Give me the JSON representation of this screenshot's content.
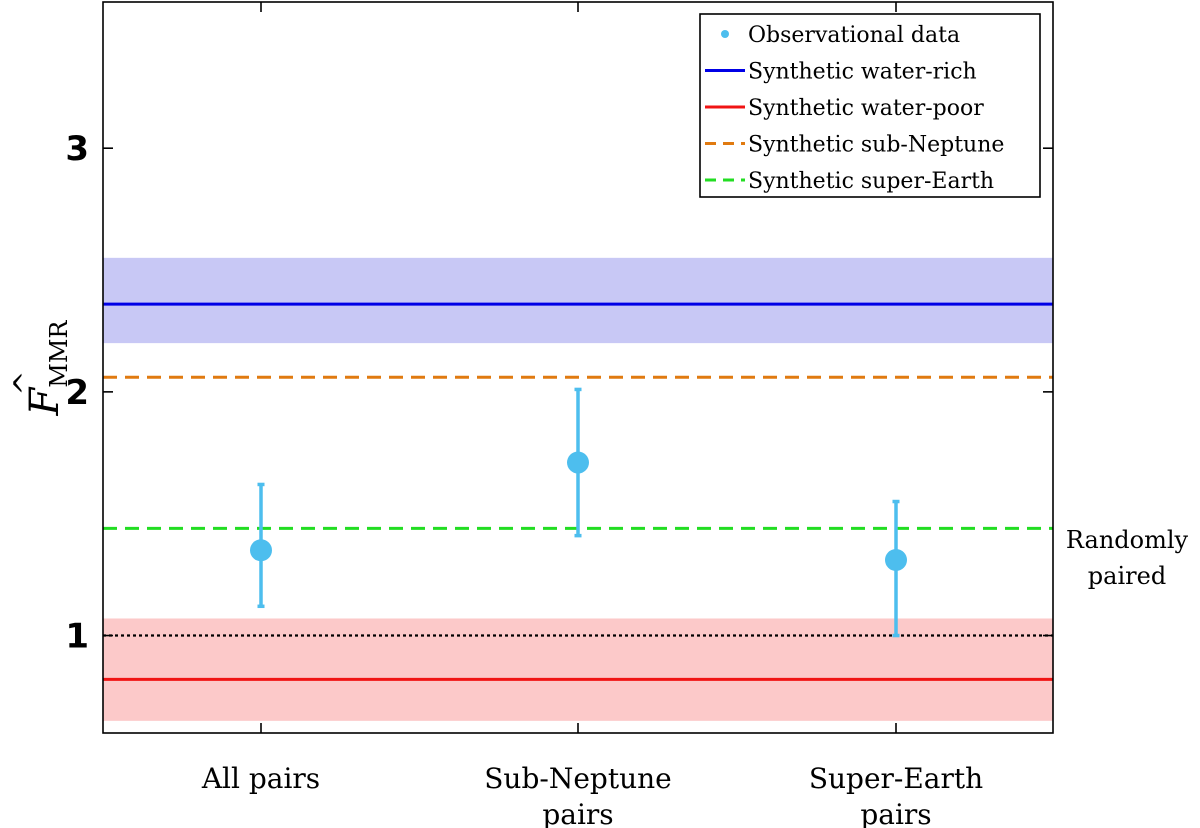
{
  "chart_data": {
    "type": "scatter",
    "ylabel": {
      "main": "F",
      "accent": "^",
      "sub": "MMR"
    },
    "ylim": [
      0.6,
      3.6
    ],
    "yticks": [
      1,
      2,
      3
    ],
    "ytick_labels": [
      "1",
      "2",
      "3"
    ],
    "grid": false,
    "legend_position": "top-right",
    "categories": [
      {
        "lines": [
          "All pairs"
        ]
      },
      {
        "lines": [
          "Sub-Neptune",
          "pairs"
        ]
      },
      {
        "lines": [
          "Super-Earth",
          "pairs"
        ]
      }
    ],
    "observational": {
      "name": "Observational data",
      "color": "#4DBEEE",
      "points": [
        {
          "category": "All pairs",
          "y": 1.35,
          "err_low": 1.12,
          "err_high": 1.62
        },
        {
          "category": "Sub-Neptune pairs",
          "y": 1.71,
          "err_low": 1.41,
          "err_high": 2.01
        },
        {
          "category": "Super-Earth pairs",
          "y": 1.31,
          "err_low": 1.0,
          "err_high": 1.55
        }
      ]
    },
    "reference_lines": [
      {
        "name": "Synthetic water-rich",
        "y": 2.36,
        "color": "#0000E6",
        "style": "solid",
        "band": [
          2.2,
          2.55
        ],
        "band_color": "#C8C8F5"
      },
      {
        "name": "Synthetic water-poor",
        "y": 0.82,
        "color": "#F01414",
        "style": "solid",
        "band": [
          0.65,
          1.07
        ],
        "band_color": "#FCC9C9"
      },
      {
        "name": "Synthetic sub-Neptune",
        "y": 2.06,
        "color": "#E07A10",
        "style": "dashed"
      },
      {
        "name": "Synthetic super-Earth",
        "y": 1.44,
        "color": "#22DD22",
        "style": "dashed"
      }
    ],
    "baseline": {
      "y": 1.0,
      "label_lines": [
        "Randomly",
        "paired"
      ],
      "color": "#000000",
      "style": "dotted"
    }
  }
}
